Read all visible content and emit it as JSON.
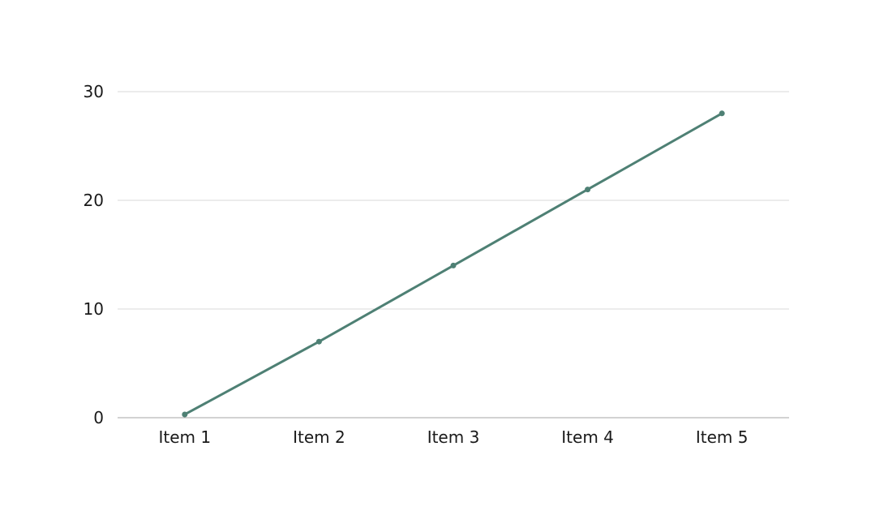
{
  "chart_data": {
    "type": "line",
    "categories": [
      "Item 1",
      "Item 2",
      "Item 3",
      "Item 4",
      "Item 5"
    ],
    "series": [
      {
        "values": [
          0.3,
          7,
          14,
          21,
          28
        ]
      }
    ],
    "ylim": [
      0,
      30
    ],
    "yticks": [
      "0",
      "10",
      "20",
      "30"
    ],
    "grid": true,
    "legend": "none",
    "line_color": "#4e8074",
    "title": "",
    "xlabel": "",
    "ylabel": ""
  }
}
